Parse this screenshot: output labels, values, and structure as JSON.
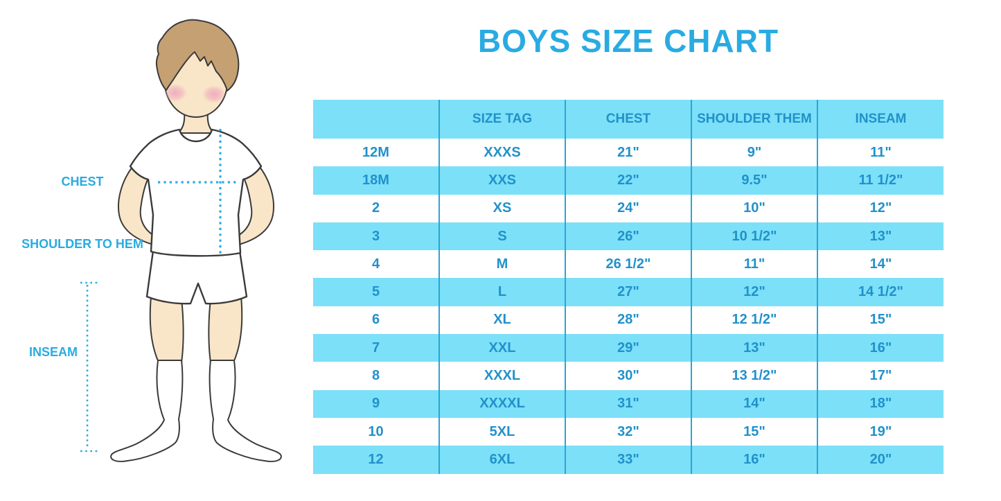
{
  "title": "BOYS SIZE CHART",
  "figure": {
    "labels": {
      "chest": "CHEST",
      "shoulder_to_hem": "SHOULDER TO HEM",
      "inseam": "INSEAM"
    }
  },
  "chart_data": {
    "type": "table",
    "title": "BOYS SIZE CHART",
    "columns": [
      "",
      "SIZE TAG",
      "CHEST",
      "SHOULDER THEM",
      "INSEAM"
    ],
    "rows": [
      [
        "12M",
        "XXXS",
        "21\"",
        "9\"",
        "11\""
      ],
      [
        "18M",
        "XXS",
        "22\"",
        "9.5\"",
        "11 1/2\""
      ],
      [
        "2",
        "XS",
        "24\"",
        "10\"",
        "12\""
      ],
      [
        "3",
        "S",
        "26\"",
        "10 1/2\"",
        "13\""
      ],
      [
        "4",
        "M",
        "26 1/2\"",
        "11\"",
        "14\""
      ],
      [
        "5",
        "L",
        "27\"",
        "12\"",
        "14 1/2\""
      ],
      [
        "6",
        "XL",
        "28\"",
        "12 1/2\"",
        "15\""
      ],
      [
        "7",
        "XXL",
        "29\"",
        "13\"",
        "16\""
      ],
      [
        "8",
        "XXXL",
        "30\"",
        "13 1/2\"",
        "17\""
      ],
      [
        "9",
        "XXXXL",
        "31\"",
        "14\"",
        "18\""
      ],
      [
        "10",
        "5XL",
        "32\"",
        "15\"",
        "19\""
      ],
      [
        "12",
        "6XL",
        "33\"",
        "16\"",
        "20\""
      ]
    ],
    "layout": {
      "header_fill": "cyan",
      "row_alternation": [
        "white",
        "cyan"
      ],
      "column_dividers": true,
      "horizontal_lines": false,
      "legend_position": "none"
    }
  },
  "colors": {
    "accent_blue": "#29ABE2",
    "table_text_blue": "#2191CB",
    "row_cyan": "#7CE0F8",
    "divider_blue": "#2BA4D9",
    "skin": "#F9E6C8",
    "hair": "#C5A072",
    "blush": "#EFABBD",
    "outline": "#3A3A3A",
    "background": "#FFFFFF"
  }
}
